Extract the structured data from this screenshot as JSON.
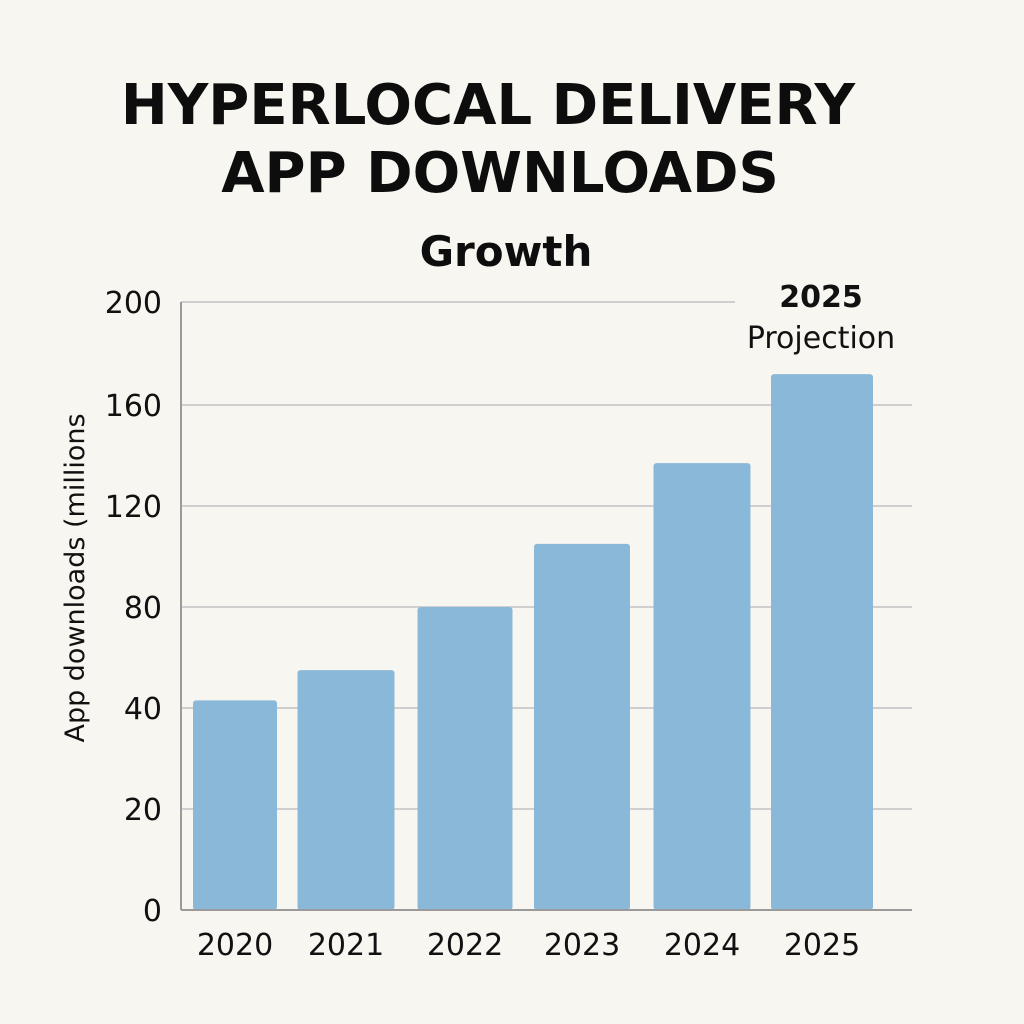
{
  "chart_data": {
    "type": "bar",
    "title_lines": [
      "HYPERLOCAL DELIVERY",
      "APP DOWNLOADS"
    ],
    "subtitle": "Growth",
    "ylabel": "App downloads (millions",
    "xlabel": "",
    "categories": [
      "2020",
      "2021",
      "2022",
      "2023",
      "2024",
      "2025"
    ],
    "values": [
      43,
      55,
      80,
      105,
      137,
      172
    ],
    "y_ticks": [
      {
        "label": "0",
        "value": 0
      },
      {
        "label": "20",
        "value": 20
      },
      {
        "label": "40",
        "value": 40
      },
      {
        "label": "80",
        "value": 80
      },
      {
        "label": "120",
        "value": 120
      },
      {
        "label": "160",
        "value": 160
      },
      {
        "label": "200",
        "value": 200
      }
    ],
    "ylim": [
      0,
      200
    ],
    "grid": true,
    "annotation": {
      "lines": [
        "2025",
        "Projection"
      ],
      "category": "2025"
    },
    "colors": {
      "bar": "#8ab8d8",
      "background": "#f8f6f1",
      "text": "#111111"
    }
  }
}
